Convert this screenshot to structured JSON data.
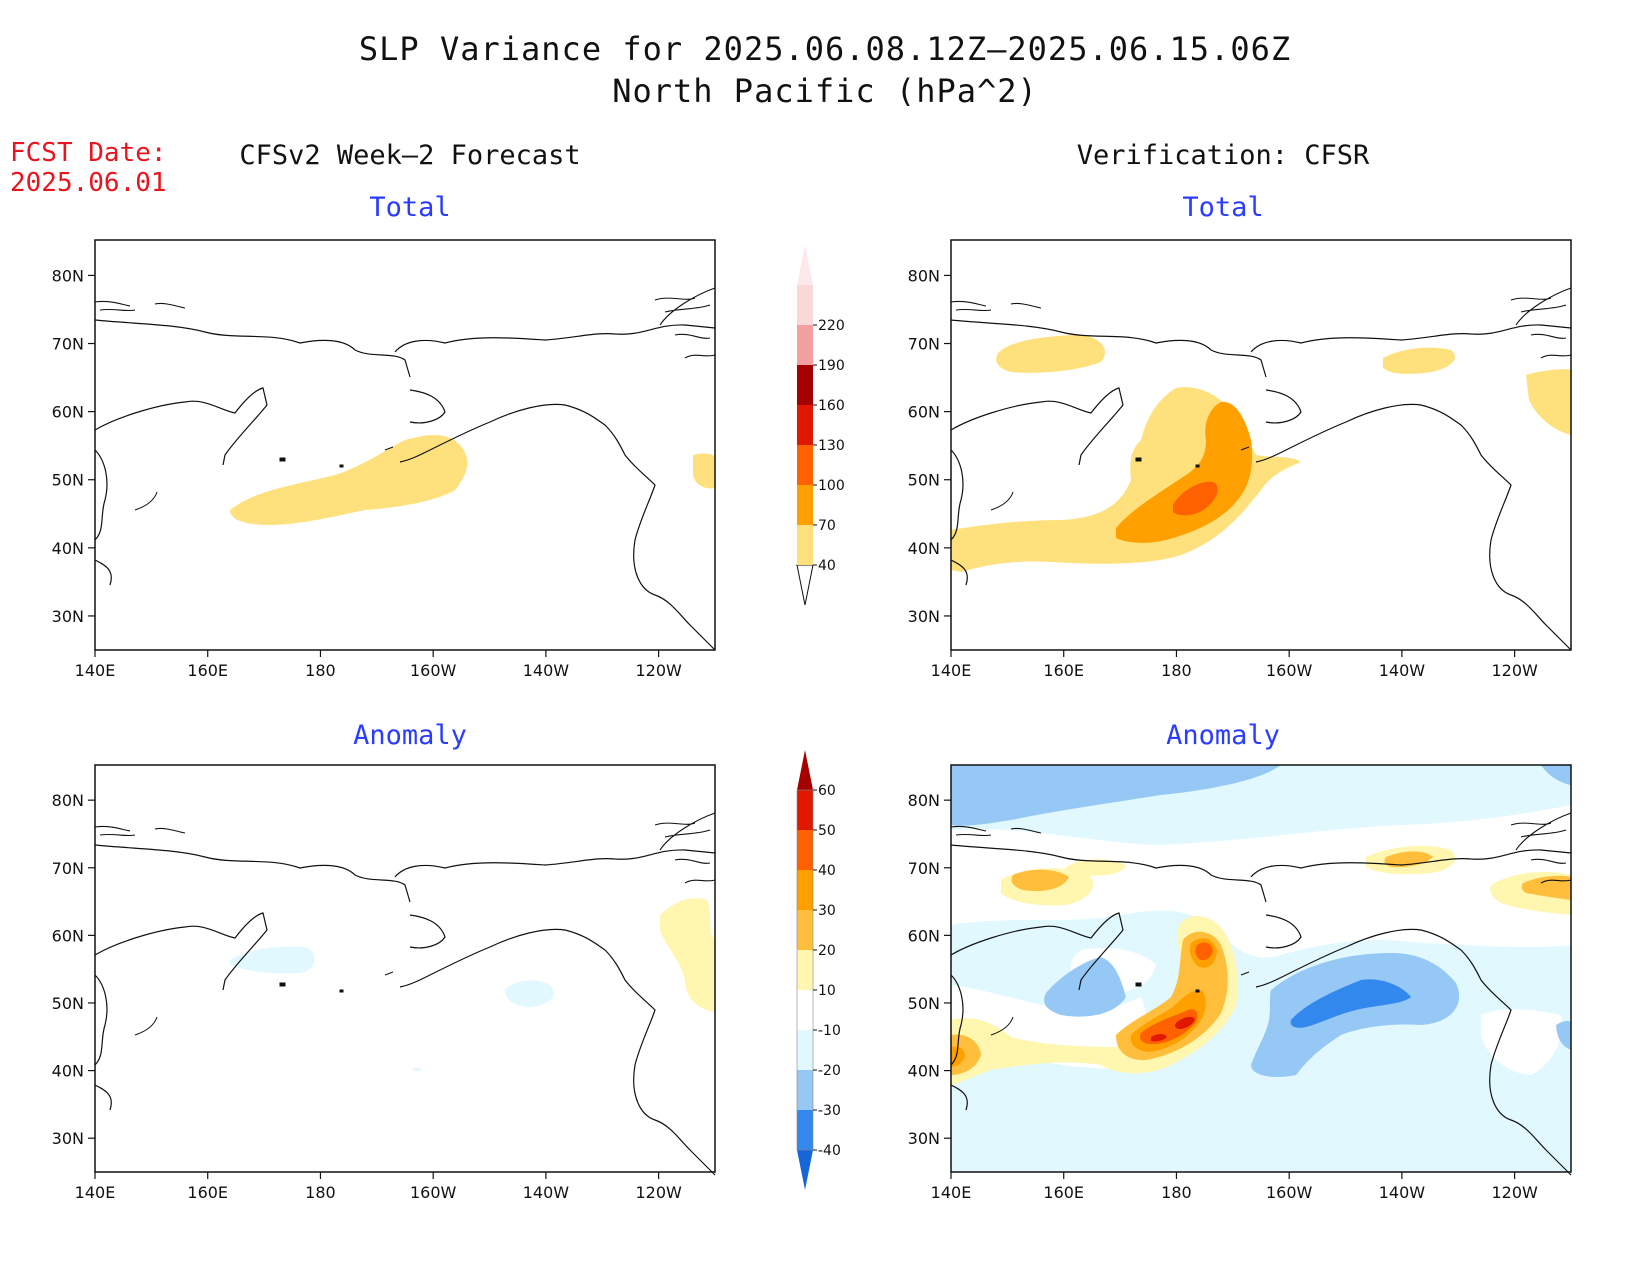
{
  "title": {
    "line1": "SLP Variance for 2025.06.08.12Z–2025.06.15.06Z",
    "line2": "North Pacific (hPa^2)"
  },
  "fcst_date": {
    "label": "FCST Date:",
    "value": "2025.06.01"
  },
  "columns": {
    "left": "CFSv2 Week–2 Forecast",
    "right": "Verification: CFSR"
  },
  "panel_titles": {
    "forecast_total": "Total",
    "verification_total": "Total",
    "forecast_anomaly": "Anomaly",
    "verification_anomaly": "Anomaly"
  },
  "axes": {
    "lat_ticks": [
      "80N",
      "70N",
      "60N",
      "50N",
      "40N",
      "30N"
    ],
    "lon_ticks": [
      "140E",
      "160E",
      "180",
      "160W",
      "140W",
      "120W"
    ]
  },
  "total_colorbar": {
    "labels": [
      "40",
      "70",
      "100",
      "130",
      "160",
      "190",
      "220"
    ],
    "colors": [
      "#fee17c",
      "#ffa000",
      "#ff6000",
      "#e11800",
      "#a50000",
      "#f4a0a0",
      "#fbd8d8"
    ]
  },
  "anomaly_colorbar": {
    "labels": [
      "-40",
      "-30",
      "-20",
      "-10",
      "10",
      "20",
      "30",
      "40",
      "50",
      "60"
    ],
    "colors": [
      "#1566d8",
      "#3388ee",
      "#96c8f5",
      "#e1f8ff",
      "#ffffff",
      "#fff6b0",
      "#ffbe3c",
      "#ffa000",
      "#ff6000",
      "#e11800",
      "#a50000"
    ]
  }
}
